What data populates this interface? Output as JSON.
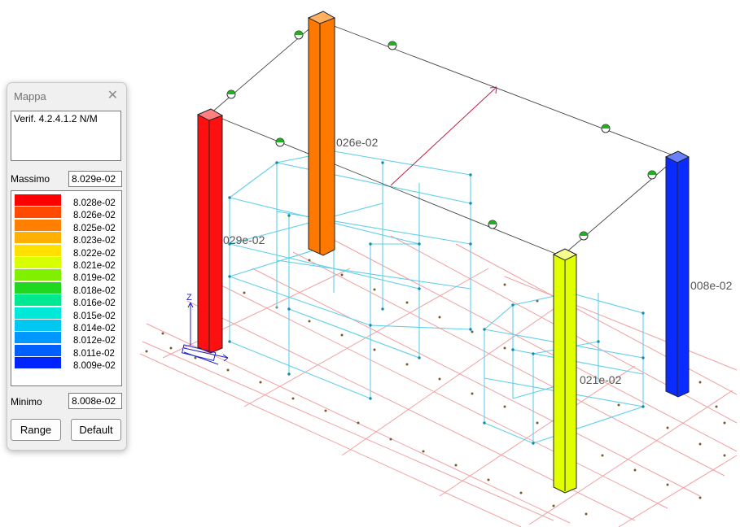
{
  "panel": {
    "title": "Mappa",
    "close_glyph": "✕",
    "verification": "Verif. 4.2.4.1.2  N/M",
    "max_label": "Massimo",
    "max_value": "8.029e-02",
    "min_label": "Minimo",
    "min_value": "8.008e-02",
    "range_button": "Range",
    "default_button": "Default",
    "legend": [
      {
        "label": "8.028e-02",
        "color": "#ff0000"
      },
      {
        "label": "8.026e-02",
        "color": "#ff4a00"
      },
      {
        "label": "8.025e-02",
        "color": "#ff8000"
      },
      {
        "label": "8.023e-02",
        "color": "#ffb000"
      },
      {
        "label": "8.022e-02",
        "color": "#ffe000"
      },
      {
        "label": "8.021e-02",
        "color": "#d8ff00"
      },
      {
        "label": "8.019e-02",
        "color": "#80f000"
      },
      {
        "label": "8.018e-02",
        "color": "#20d820"
      },
      {
        "label": "8.016e-02",
        "color": "#00e890"
      },
      {
        "label": "8.015e-02",
        "color": "#00e8d8"
      },
      {
        "label": "8.014e-02",
        "color": "#00c8f0"
      },
      {
        "label": "8.012e-02",
        "color": "#0098ff"
      },
      {
        "label": "8.011e-02",
        "color": "#0060ff"
      },
      {
        "label": "8.009e-02",
        "color": "#0024ff"
      }
    ]
  },
  "viewport": {
    "axis_label": "Z",
    "column_labels": [
      "026e-02",
      "029e-02",
      "008e-02",
      "021e-02"
    ],
    "column_colors": {
      "red": "#ff0000",
      "orange": "#ff7800",
      "yellow": "#e2ff00",
      "blue": "#0020ff"
    }
  }
}
